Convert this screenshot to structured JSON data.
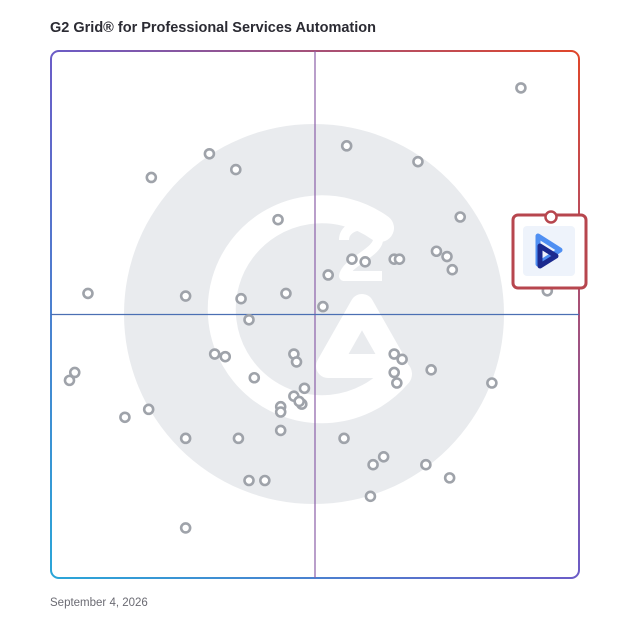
{
  "title": "G2 Grid® for Professional Services Automation",
  "date": "September 4, 2026",
  "watermark": {
    "logo": "G2",
    "color": "#e9ebee"
  },
  "colors": {
    "border_gradient": [
      "#2aa6d8",
      "#6b5cc7",
      "#e0462a"
    ],
    "axis_horizontal": "#4b6fb3",
    "axis_vertical": "#8b5fa8",
    "dot": "#9fa3aa",
    "highlight_frame": "#b7464e",
    "highlight_logo_light": "#4f8ff2",
    "highlight_logo_dark": "#1b2a8f"
  },
  "chart_data": {
    "type": "scatter",
    "title": "G2 Grid® for Professional Services Automation",
    "xlabel": "",
    "ylabel": "",
    "xlim": [
      0,
      100
    ],
    "ylim": [
      0,
      100
    ],
    "grid": false,
    "quadrant_dividers": {
      "x": 50,
      "y": 50
    },
    "highlighted": {
      "icon": "play-logo-icon",
      "x": 94.5,
      "y": 61
    },
    "points": [
      {
        "x": 89,
        "y": 93
      },
      {
        "x": 56,
        "y": 82
      },
      {
        "x": 69.5,
        "y": 79
      },
      {
        "x": 30,
        "y": 80.5
      },
      {
        "x": 35,
        "y": 77.5
      },
      {
        "x": 19,
        "y": 76
      },
      {
        "x": 77.5,
        "y": 68.5
      },
      {
        "x": 43,
        "y": 68
      },
      {
        "x": 73,
        "y": 62
      },
      {
        "x": 75,
        "y": 61
      },
      {
        "x": 57,
        "y": 60.5
      },
      {
        "x": 59.5,
        "y": 60
      },
      {
        "x": 65,
        "y": 60.5
      },
      {
        "x": 66,
        "y": 60.5
      },
      {
        "x": 76,
        "y": 58.5
      },
      {
        "x": 52.5,
        "y": 57.5
      },
      {
        "x": 94,
        "y": 54.5
      },
      {
        "x": 7,
        "y": 54
      },
      {
        "x": 25.5,
        "y": 53.5
      },
      {
        "x": 36,
        "y": 53
      },
      {
        "x": 44.5,
        "y": 54
      },
      {
        "x": 51.5,
        "y": 51.5
      },
      {
        "x": 37.5,
        "y": 49
      },
      {
        "x": 31,
        "y": 42.5
      },
      {
        "x": 33,
        "y": 42
      },
      {
        "x": 46,
        "y": 42.5
      },
      {
        "x": 46.5,
        "y": 41
      },
      {
        "x": 65,
        "y": 42.5
      },
      {
        "x": 66.5,
        "y": 41.5
      },
      {
        "x": 72,
        "y": 39.5
      },
      {
        "x": 4.5,
        "y": 39
      },
      {
        "x": 3.5,
        "y": 37.5
      },
      {
        "x": 38.5,
        "y": 38
      },
      {
        "x": 48,
        "y": 36
      },
      {
        "x": 65,
        "y": 39
      },
      {
        "x": 65.5,
        "y": 37
      },
      {
        "x": 83.5,
        "y": 37
      },
      {
        "x": 46,
        "y": 34.5
      },
      {
        "x": 47.5,
        "y": 33
      },
      {
        "x": 18.5,
        "y": 32
      },
      {
        "x": 43.5,
        "y": 32.5
      },
      {
        "x": 43.5,
        "y": 31.5
      },
      {
        "x": 47,
        "y": 33.5
      },
      {
        "x": 14,
        "y": 30.5
      },
      {
        "x": 43.5,
        "y": 28
      },
      {
        "x": 25.5,
        "y": 26.5
      },
      {
        "x": 35.5,
        "y": 26.5
      },
      {
        "x": 55.5,
        "y": 26.5
      },
      {
        "x": 63,
        "y": 23
      },
      {
        "x": 61,
        "y": 21.5
      },
      {
        "x": 71,
        "y": 21.5
      },
      {
        "x": 75.5,
        "y": 19
      },
      {
        "x": 37.5,
        "y": 18.5
      },
      {
        "x": 40.5,
        "y": 18.5
      },
      {
        "x": 60.5,
        "y": 15.5
      },
      {
        "x": 25.5,
        "y": 9.5
      }
    ]
  }
}
